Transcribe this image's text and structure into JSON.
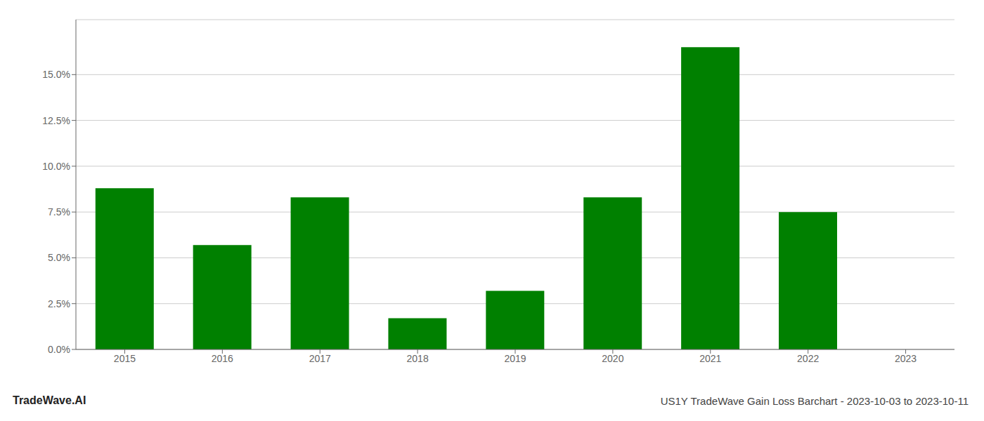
{
  "chart_data": {
    "type": "bar",
    "title": "US1Y TradeWave Gain Loss Barchart - 2023-10-03 to 2023-10-11",
    "annotations": [
      "TradeWave.AI"
    ],
    "categories": [
      "2015",
      "2016",
      "2017",
      "2018",
      "2019",
      "2020",
      "2021",
      "2022",
      "2023"
    ],
    "values": [
      0.088,
      0.057,
      0.083,
      0.017,
      0.032,
      0.083,
      0.165,
      0.075,
      0.0
    ],
    "color": "#008000",
    "ylim": [
      0,
      0.18
    ],
    "yticks": [
      {
        "value": 0.0,
        "label": "0.0%"
      },
      {
        "value": 0.025,
        "label": "2.5%"
      },
      {
        "value": 0.05,
        "label": "5.0%"
      },
      {
        "value": 0.075,
        "label": "7.5%"
      },
      {
        "value": 0.1,
        "label": "10.0%"
      },
      {
        "value": 0.125,
        "label": "12.5%"
      },
      {
        "value": 0.15,
        "label": "15.0%"
      }
    ],
    "grid": true
  }
}
